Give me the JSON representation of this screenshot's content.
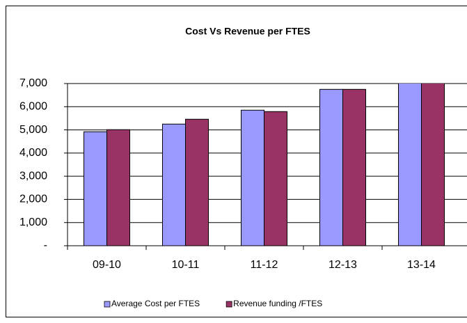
{
  "chart_data": {
    "type": "bar",
    "title": "Cost Vs  Revenue  per  FTES",
    "categories": [
      "09-10",
      "10-11",
      "11-12",
      "12-13",
      "13-14"
    ],
    "series": [
      {
        "name": "Average Cost per FTES",
        "color": "#9999ff",
        "values": [
          4920,
          5250,
          5850,
          6750,
          7200
        ]
      },
      {
        "name": "Revenue funding /FTES",
        "color": "#993366",
        "values": [
          5010,
          5460,
          5790,
          6750,
          7200
        ]
      }
    ],
    "ylim": [
      0,
      7000
    ],
    "yticks": [
      {
        "value": 0,
        "label": "-"
      },
      {
        "value": 1000,
        "label": "1,000"
      },
      {
        "value": 2000,
        "label": "2,000"
      },
      {
        "value": 3000,
        "label": "3,000"
      },
      {
        "value": 4000,
        "label": "4,000"
      },
      {
        "value": 5000,
        "label": "5,000"
      },
      {
        "value": 6000,
        "label": "6,000"
      },
      {
        "value": 7000,
        "label": "7,000"
      }
    ],
    "legend": "bottom"
  }
}
